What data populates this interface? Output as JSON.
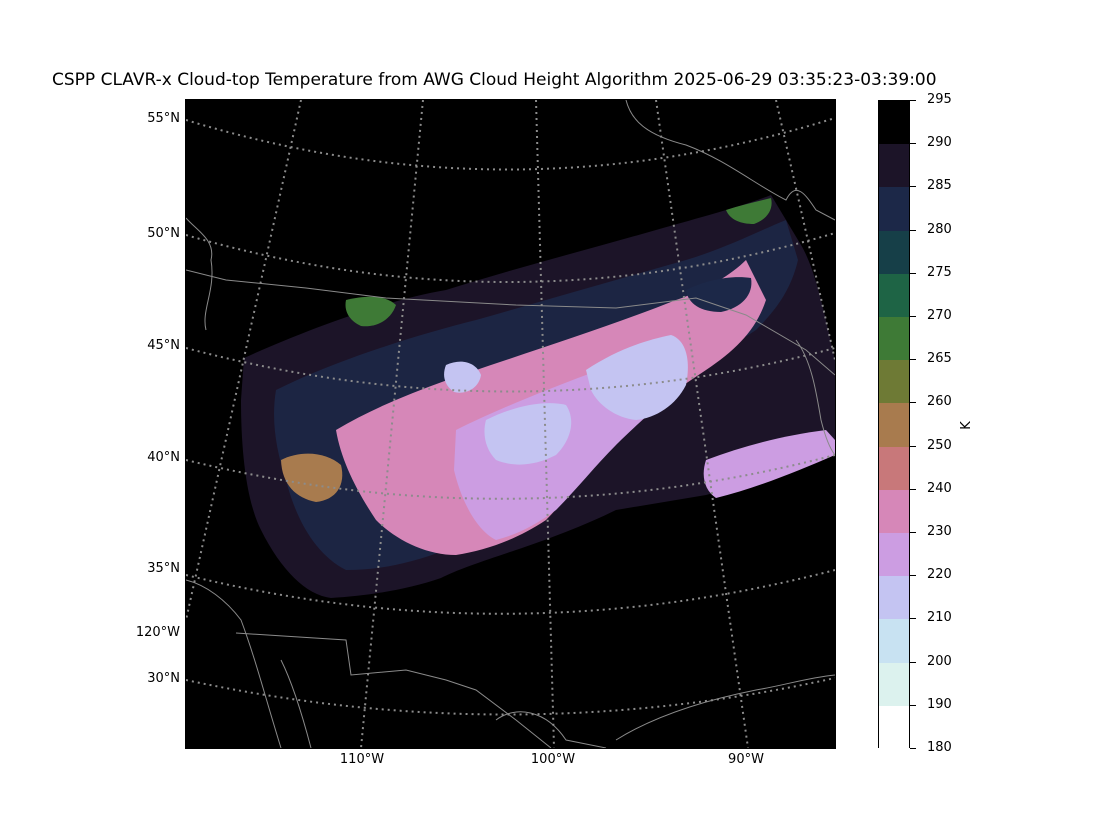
{
  "title": "CSPP CLAVR-x Cloud-top Temperature from AWG Cloud Height Algorithm 2025-06-29 03:35:23-03:39:00",
  "lat_labels": [
    {
      "text": "55°N",
      "value": 55
    },
    {
      "text": "50°N",
      "value": 50
    },
    {
      "text": "45°N",
      "value": 45
    },
    {
      "text": "40°N",
      "value": 40
    },
    {
      "text": "35°N",
      "value": 35
    },
    {
      "text": "30°N",
      "value": 30
    }
  ],
  "left_lon_label": {
    "text": "120°W",
    "value": -120
  },
  "lon_labels": [
    {
      "text": "110°W",
      "value": -110
    },
    {
      "text": "100°W",
      "value": -100
    },
    {
      "text": "90°W",
      "value": -90
    }
  ],
  "colorbar": {
    "unit": "K",
    "min": 180,
    "max": 295,
    "ticks": [
      "295",
      "290",
      "285",
      "280",
      "275",
      "270",
      "265",
      "260",
      "250",
      "240",
      "230",
      "220",
      "210",
      "200",
      "190",
      "180"
    ],
    "colors": [
      "#000000",
      "#1c1428",
      "#1c2848",
      "#163f48",
      "#1e6445",
      "#3e7a36",
      "#6e7a35",
      "#a87b4e",
      "#c8787a",
      "#d687b8",
      "#cc9de2",
      "#c4c4f2",
      "#c8e2f2",
      "#dcf2ee",
      "#ffffff"
    ]
  },
  "map_colors": {
    "background": "#000000",
    "coastline": "#8a8a8a",
    "gridline": "#8c8c8c"
  }
}
